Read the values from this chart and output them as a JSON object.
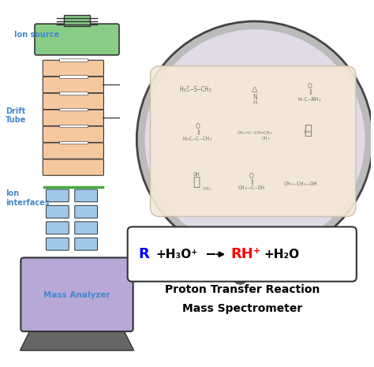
{
  "title_line1": "Proton Transfer Reaction",
  "title_line2": "Mass Spectrometer",
  "label_ion_source": "Ion source",
  "label_drift_tube": "Drift\nTube",
  "label_ion_interfaces": "Ion\ninterfaces",
  "label_mass_analyzer": "Mass Analyzer",
  "color_blue_label": "#4488cc",
  "color_salmon": "#f5c8a0",
  "color_green_top": "#88cc88",
  "color_green_line": "#44aa44",
  "color_purple_box": "#b8a8d8",
  "color_blue_rect": "#a0c8e8",
  "color_dark": "#333333",
  "color_circle_bg": "#e8e0f0",
  "color_inner_box": "#f5e8d8",
  "bg_color": "#ffffff"
}
